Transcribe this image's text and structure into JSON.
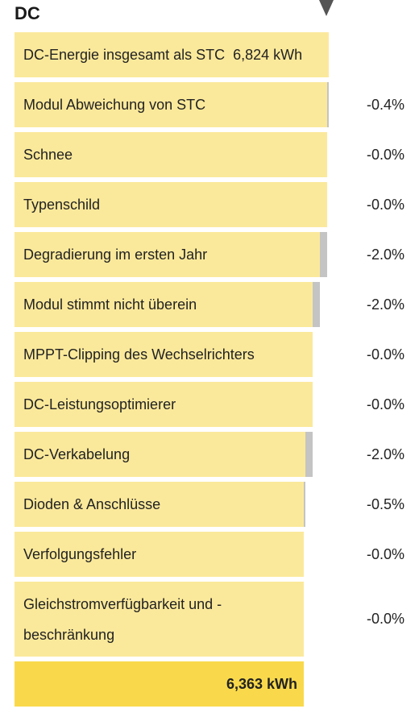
{
  "section_title": "DC",
  "chart_data": {
    "type": "bar",
    "start": {
      "label": "DC-Energie insgesamt als STC",
      "value_text": "6,824 kWh",
      "value": 6824
    },
    "steps": [
      {
        "label": "Modul Abweichung von STC",
        "pct_text": "-0.4%",
        "pct": -0.4
      },
      {
        "label": "Schnee",
        "pct_text": "-0.0%",
        "pct": 0.0
      },
      {
        "label": "Typenschild",
        "pct_text": "-0.0%",
        "pct": 0.0
      },
      {
        "label": "Degradierung im ersten Jahr",
        "pct_text": "-2.0%",
        "pct": -2.0
      },
      {
        "label": "Modul stimmt nicht überein",
        "pct_text": "-2.0%",
        "pct": -2.0
      },
      {
        "label": "MPPT-Clipping des Wechselrichters",
        "pct_text": "-0.0%",
        "pct": 0.0
      },
      {
        "label": "DC-Leistungsoptimierer",
        "pct_text": "-0.0%",
        "pct": 0.0
      },
      {
        "label": "DC-Verkabelung",
        "pct_text": "-2.0%",
        "pct": -2.0
      },
      {
        "label": "Dioden & Anschlüsse",
        "pct_text": "-0.5%",
        "pct": -0.5
      },
      {
        "label": "Verfolgungsfehler",
        "pct_text": "-0.0%",
        "pct": 0.0
      },
      {
        "label": "Gleichstromverfügbarkeit und -beschränkung",
        "pct_text": "-0.0%",
        "pct": 0.0
      }
    ],
    "total": {
      "value_text": "6,363 kWh",
      "value": 6363
    }
  },
  "colors": {
    "bar": "#fbe99b",
    "total_bar": "#f9d94b",
    "loss": "#c4c4c4",
    "marker": "#555555"
  }
}
